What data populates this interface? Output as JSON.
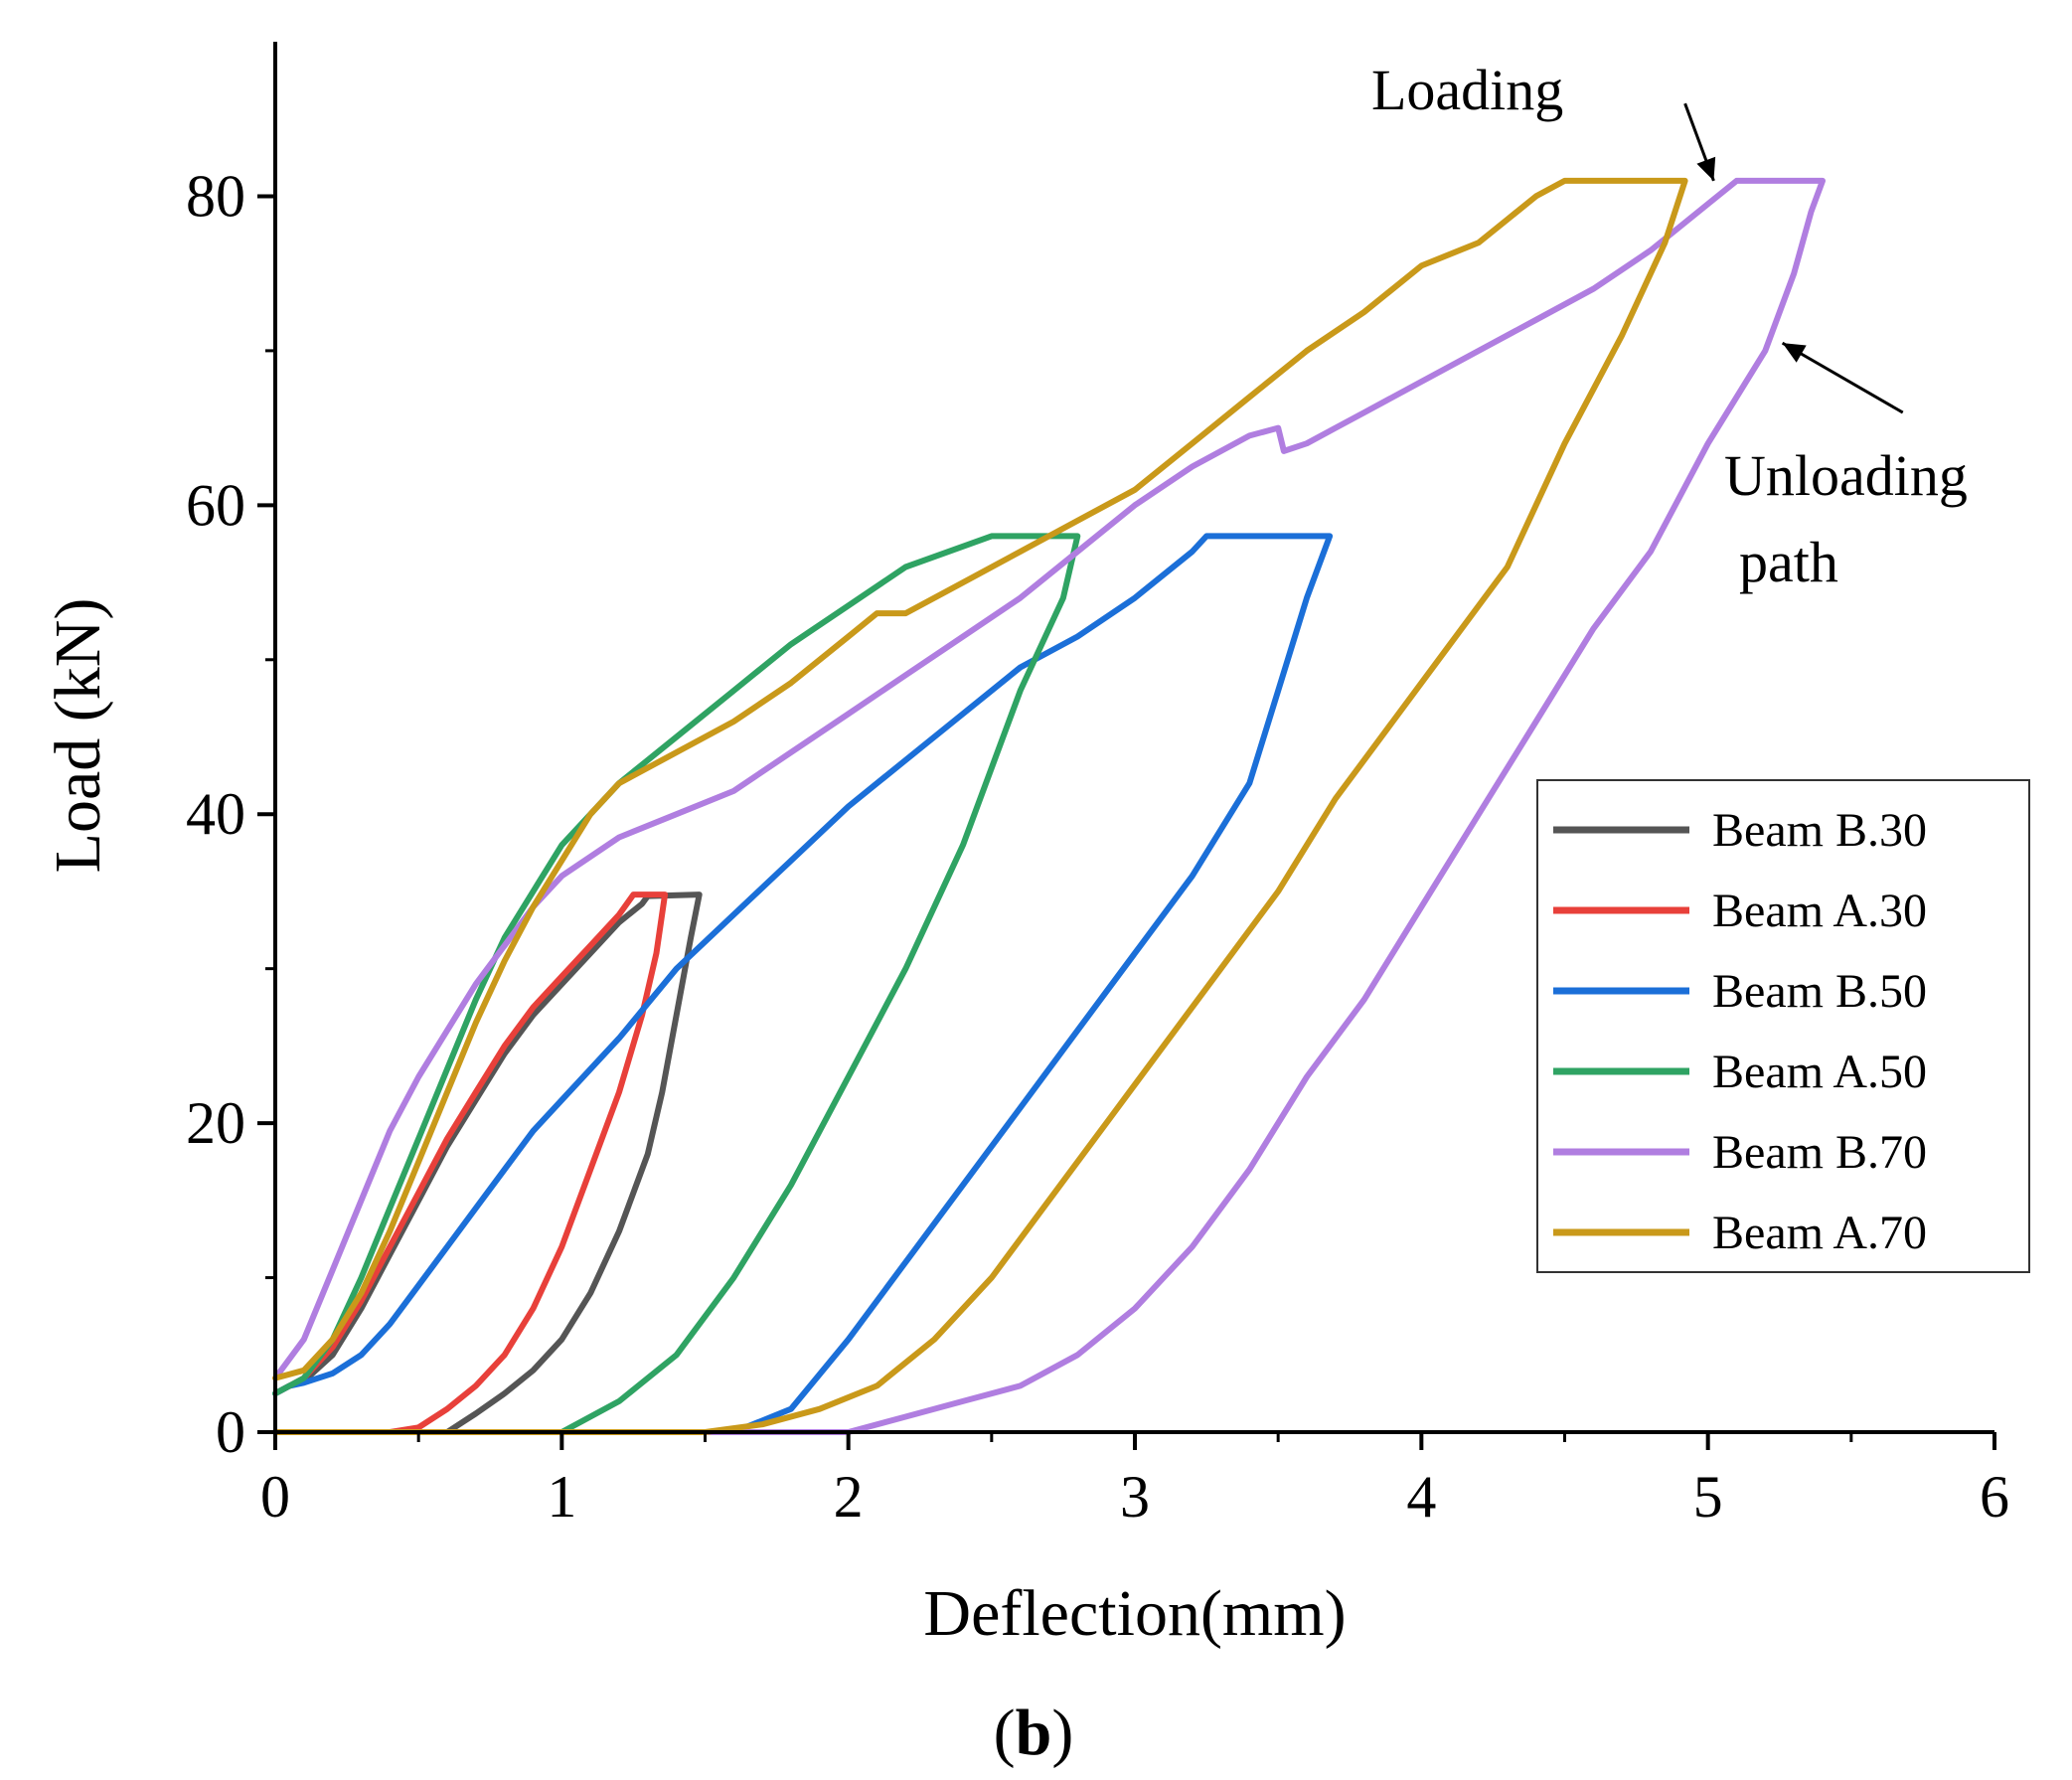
{
  "chart_data": {
    "type": "line",
    "title": "",
    "xlabel": "Deflection(mm)",
    "ylabel": "Load (kN)",
    "caption_open": "(",
    "caption_letter": "b",
    "caption_close": ")",
    "xlim": [
      0,
      6
    ],
    "ylim": [
      0,
      90
    ],
    "xticks": [
      0,
      1,
      2,
      3,
      4,
      5,
      6
    ],
    "yticks": [
      0,
      20,
      40,
      60,
      80
    ],
    "grid": false,
    "legend_position": "right",
    "annotations": [
      {
        "text": "Loading",
        "arrow_from": [
          4.92,
          86.0
        ],
        "arrow_to": [
          5.02,
          81.0
        ]
      },
      {
        "text": "Unloading",
        "arrow_from": [
          5.68,
          66.0
        ],
        "arrow_to": [
          5.26,
          70.5
        ]
      },
      {
        "text": "path"
      }
    ],
    "series": [
      {
        "name": "Beam B.30",
        "color": "#555555",
        "points": [
          [
            0.0,
            2.5
          ],
          [
            0.05,
            3.0
          ],
          [
            0.1,
            3.3
          ],
          [
            0.2,
            5.0
          ],
          [
            0.3,
            8.0
          ],
          [
            0.4,
            11.5
          ],
          [
            0.5,
            15.0
          ],
          [
            0.6,
            18.5
          ],
          [
            0.7,
            21.5
          ],
          [
            0.8,
            24.5
          ],
          [
            0.9,
            27.0
          ],
          [
            1.0,
            29.0
          ],
          [
            1.1,
            31.0
          ],
          [
            1.2,
            33.0
          ],
          [
            1.28,
            34.2
          ],
          [
            1.3,
            34.7
          ],
          [
            1.48,
            34.8
          ],
          [
            1.45,
            32.0
          ],
          [
            1.4,
            27.0
          ],
          [
            1.35,
            22.0
          ],
          [
            1.3,
            18.0
          ],
          [
            1.2,
            13.0
          ],
          [
            1.1,
            9.0
          ],
          [
            1.0,
            6.0
          ],
          [
            0.9,
            4.0
          ],
          [
            0.8,
            2.5
          ],
          [
            0.7,
            1.2
          ],
          [
            0.6,
            0.0
          ],
          [
            0.0,
            0.0
          ]
        ]
      },
      {
        "name": "Beam A.30",
        "color": "#e8403a",
        "points": [
          [
            0.0,
            2.5
          ],
          [
            0.05,
            3.0
          ],
          [
            0.1,
            3.5
          ],
          [
            0.2,
            5.5
          ],
          [
            0.3,
            8.5
          ],
          [
            0.4,
            12.0
          ],
          [
            0.5,
            15.5
          ],
          [
            0.6,
            19.0
          ],
          [
            0.7,
            22.0
          ],
          [
            0.8,
            25.0
          ],
          [
            0.9,
            27.5
          ],
          [
            1.0,
            29.5
          ],
          [
            1.1,
            31.5
          ],
          [
            1.2,
            33.5
          ],
          [
            1.25,
            34.8
          ],
          [
            1.36,
            34.8
          ],
          [
            1.33,
            31.0
          ],
          [
            1.28,
            27.0
          ],
          [
            1.2,
            22.0
          ],
          [
            1.1,
            17.0
          ],
          [
            1.0,
            12.0
          ],
          [
            0.9,
            8.0
          ],
          [
            0.8,
            5.0
          ],
          [
            0.7,
            3.0
          ],
          [
            0.6,
            1.5
          ],
          [
            0.5,
            0.3
          ],
          [
            0.4,
            0.0
          ],
          [
            0.0,
            0.0
          ]
        ]
      },
      {
        "name": "Beam B.50",
        "color": "#1b6fd8",
        "points": [
          [
            0.0,
            2.5
          ],
          [
            0.05,
            3.0
          ],
          [
            0.1,
            3.2
          ],
          [
            0.2,
            3.8
          ],
          [
            0.3,
            5.0
          ],
          [
            0.4,
            7.0
          ],
          [
            0.5,
            9.5
          ],
          [
            0.6,
            12.0
          ],
          [
            0.7,
            14.5
          ],
          [
            0.8,
            17.0
          ],
          [
            0.9,
            19.5
          ],
          [
            1.0,
            21.5
          ],
          [
            1.2,
            25.5
          ],
          [
            1.4,
            30.0
          ],
          [
            1.6,
            33.5
          ],
          [
            1.8,
            37.0
          ],
          [
            2.0,
            40.5
          ],
          [
            2.2,
            43.5
          ],
          [
            2.4,
            46.5
          ],
          [
            2.6,
            49.5
          ],
          [
            2.8,
            51.5
          ],
          [
            3.0,
            54.0
          ],
          [
            3.2,
            57.0
          ],
          [
            3.25,
            58.0
          ],
          [
            3.68,
            58.0
          ],
          [
            3.6,
            54.0
          ],
          [
            3.5,
            48.0
          ],
          [
            3.4,
            42.0
          ],
          [
            3.2,
            36.0
          ],
          [
            3.0,
            31.0
          ],
          [
            2.8,
            26.0
          ],
          [
            2.6,
            21.0
          ],
          [
            2.4,
            16.0
          ],
          [
            2.2,
            11.0
          ],
          [
            2.0,
            6.0
          ],
          [
            1.8,
            1.5
          ],
          [
            1.6,
            0.0
          ],
          [
            0.0,
            0.0
          ]
        ]
      },
      {
        "name": "Beam A.50",
        "color": "#2fa363",
        "points": [
          [
            0.0,
            2.5
          ],
          [
            0.05,
            3.0
          ],
          [
            0.1,
            3.5
          ],
          [
            0.2,
            6.0
          ],
          [
            0.3,
            10.0
          ],
          [
            0.4,
            14.5
          ],
          [
            0.5,
            19.0
          ],
          [
            0.6,
            23.5
          ],
          [
            0.7,
            28.0
          ],
          [
            0.8,
            32.0
          ],
          [
            0.9,
            35.0
          ],
          [
            1.0,
            38.0
          ],
          [
            1.1,
            40.0
          ],
          [
            1.2,
            42.0
          ],
          [
            1.4,
            45.0
          ],
          [
            1.6,
            48.0
          ],
          [
            1.8,
            51.0
          ],
          [
            2.0,
            53.5
          ],
          [
            2.2,
            56.0
          ],
          [
            2.5,
            58.0
          ],
          [
            2.8,
            58.0
          ],
          [
            2.75,
            54.0
          ],
          [
            2.6,
            48.0
          ],
          [
            2.4,
            38.0
          ],
          [
            2.2,
            30.0
          ],
          [
            2.0,
            23.0
          ],
          [
            1.8,
            16.0
          ],
          [
            1.6,
            10.0
          ],
          [
            1.4,
            5.0
          ],
          [
            1.2,
            2.0
          ],
          [
            1.0,
            0.0
          ],
          [
            0.0,
            0.0
          ]
        ]
      },
      {
        "name": "Beam B.70",
        "color": "#b07ee0",
        "points": [
          [
            0.0,
            3.5
          ],
          [
            0.1,
            6.0
          ],
          [
            0.2,
            10.5
          ],
          [
            0.3,
            15.0
          ],
          [
            0.4,
            19.5
          ],
          [
            0.5,
            23.0
          ],
          [
            0.6,
            26.0
          ],
          [
            0.7,
            29.0
          ],
          [
            0.8,
            31.5
          ],
          [
            0.9,
            34.0
          ],
          [
            1.0,
            36.0
          ],
          [
            1.2,
            38.5
          ],
          [
            1.4,
            40.0
          ],
          [
            1.6,
            41.5
          ],
          [
            1.8,
            44.0
          ],
          [
            2.0,
            46.5
          ],
          [
            2.2,
            49.0
          ],
          [
            2.4,
            51.5
          ],
          [
            2.6,
            54.0
          ],
          [
            2.8,
            57.0
          ],
          [
            3.0,
            60.0
          ],
          [
            3.2,
            62.5
          ],
          [
            3.4,
            64.5
          ],
          [
            3.5,
            65.0
          ],
          [
            3.52,
            63.5
          ],
          [
            3.6,
            64.0
          ],
          [
            3.7,
            65.0
          ],
          [
            3.8,
            66.0
          ],
          [
            4.0,
            68.0
          ],
          [
            4.2,
            70.0
          ],
          [
            4.4,
            72.0
          ],
          [
            4.6,
            74.0
          ],
          [
            4.8,
            76.5
          ],
          [
            5.0,
            79.5
          ],
          [
            5.1,
            81.0
          ],
          [
            5.4,
            81.0
          ],
          [
            5.36,
            79.0
          ],
          [
            5.3,
            75.0
          ],
          [
            5.2,
            70.0
          ],
          [
            5.0,
            64.0
          ],
          [
            4.8,
            57.0
          ],
          [
            4.6,
            52.0
          ],
          [
            4.4,
            46.0
          ],
          [
            4.2,
            40.0
          ],
          [
            4.0,
            34.0
          ],
          [
            3.8,
            28.0
          ],
          [
            3.6,
            23.0
          ],
          [
            3.4,
            17.0
          ],
          [
            3.2,
            12.0
          ],
          [
            3.0,
            8.0
          ],
          [
            2.8,
            5.0
          ],
          [
            2.6,
            3.0
          ],
          [
            2.4,
            2.0
          ],
          [
            2.2,
            1.0
          ],
          [
            2.0,
            0.0
          ],
          [
            0.0,
            0.0
          ]
        ]
      },
      {
        "name": "Beam A.70",
        "color": "#c9991a",
        "points": [
          [
            0.0,
            3.5
          ],
          [
            0.1,
            4.0
          ],
          [
            0.2,
            6.0
          ],
          [
            0.3,
            9.0
          ],
          [
            0.4,
            13.0
          ],
          [
            0.5,
            17.5
          ],
          [
            0.6,
            22.0
          ],
          [
            0.7,
            26.5
          ],
          [
            0.8,
            30.5
          ],
          [
            0.9,
            34.0
          ],
          [
            1.0,
            37.0
          ],
          [
            1.1,
            40.0
          ],
          [
            1.2,
            42.0
          ],
          [
            1.4,
            44.0
          ],
          [
            1.6,
            46.0
          ],
          [
            1.8,
            48.5
          ],
          [
            2.0,
            51.5
          ],
          [
            2.1,
            53.0
          ],
          [
            2.2,
            53.0
          ],
          [
            2.4,
            55.0
          ],
          [
            2.6,
            57.0
          ],
          [
            2.8,
            59.0
          ],
          [
            3.0,
            61.0
          ],
          [
            3.2,
            64.0
          ],
          [
            3.4,
            67.0
          ],
          [
            3.6,
            70.0
          ],
          [
            3.8,
            72.5
          ],
          [
            4.0,
            75.5
          ],
          [
            4.2,
            77.0
          ],
          [
            4.3,
            78.5
          ],
          [
            4.4,
            80.0
          ],
          [
            4.5,
            81.0
          ],
          [
            4.92,
            81.0
          ],
          [
            4.85,
            77.0
          ],
          [
            4.7,
            71.0
          ],
          [
            4.5,
            64.0
          ],
          [
            4.3,
            56.0
          ],
          [
            4.1,
            51.0
          ],
          [
            3.9,
            46.0
          ],
          [
            3.7,
            41.0
          ],
          [
            3.5,
            35.0
          ],
          [
            3.3,
            30.0
          ],
          [
            3.1,
            25.0
          ],
          [
            2.9,
            20.0
          ],
          [
            2.7,
            15.0
          ],
          [
            2.5,
            10.0
          ],
          [
            2.3,
            6.0
          ],
          [
            2.1,
            3.0
          ],
          [
            1.9,
            1.5
          ],
          [
            1.7,
            0.5
          ],
          [
            1.5,
            0.0
          ],
          [
            0.0,
            0.0
          ]
        ]
      }
    ]
  }
}
